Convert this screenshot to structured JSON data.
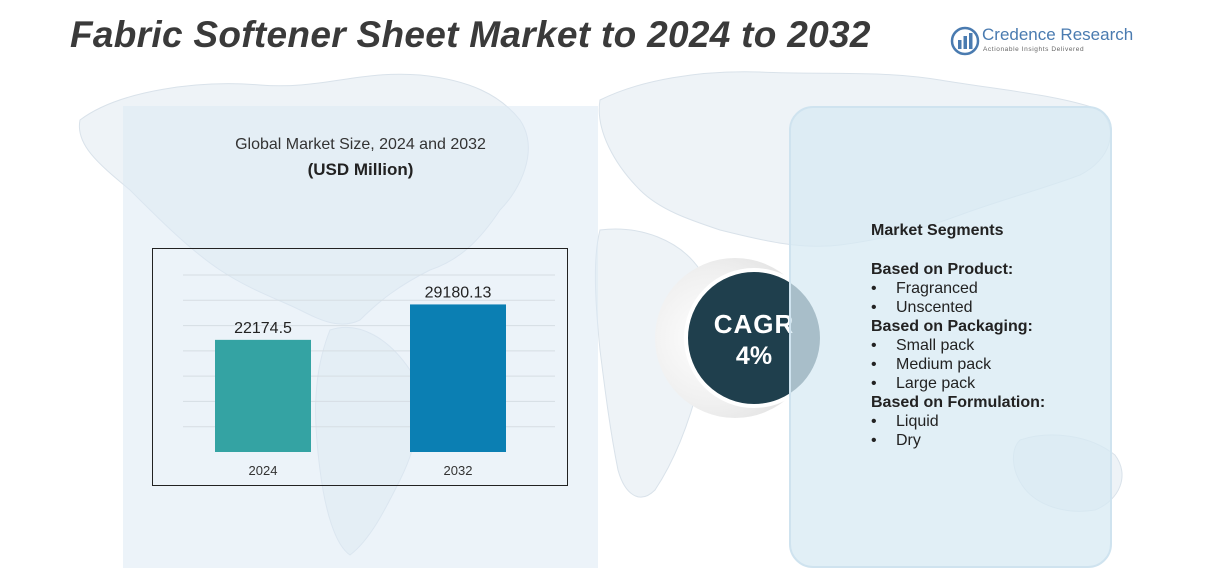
{
  "header": {
    "title": "Fabric Softener Sheet Market to 2024 to 2032"
  },
  "logo": {
    "name": "Credence Research",
    "tagline": "Actionable Insights Delivered"
  },
  "chart_data": {
    "type": "bar",
    "title": "Global Market Size, 2024 and 2032",
    "subtitle": "(USD Million)",
    "categories": [
      "2024",
      "2032"
    ],
    "values": [
      22174.5,
      29180.13
    ],
    "value_labels": [
      "22174.5",
      "29180.13"
    ],
    "colors": [
      "#34a3a3",
      "#0b7fb3"
    ],
    "ylim": [
      0,
      35000
    ],
    "grid": true,
    "xlabel": "",
    "ylabel": ""
  },
  "cagr": {
    "label": "CAGR",
    "value": "4%"
  },
  "segments": {
    "title": "Market Segments",
    "groups": [
      {
        "title": "Based on Product:",
        "items": [
          "Fragranced",
          "Unscented"
        ]
      },
      {
        "title": "Based on Packaging:",
        "items": [
          "Small pack",
          "Medium pack",
          "Large pack"
        ]
      },
      {
        "title": "Based on Formulation:",
        "items": [
          "Liquid",
          "Dry"
        ]
      }
    ]
  },
  "colors": {
    "title_text": "#3a3a3a",
    "cagr_circle": "#1f3f4d",
    "panel_bg": "#dceaf4",
    "logo_blue": "#4a7bb0"
  }
}
